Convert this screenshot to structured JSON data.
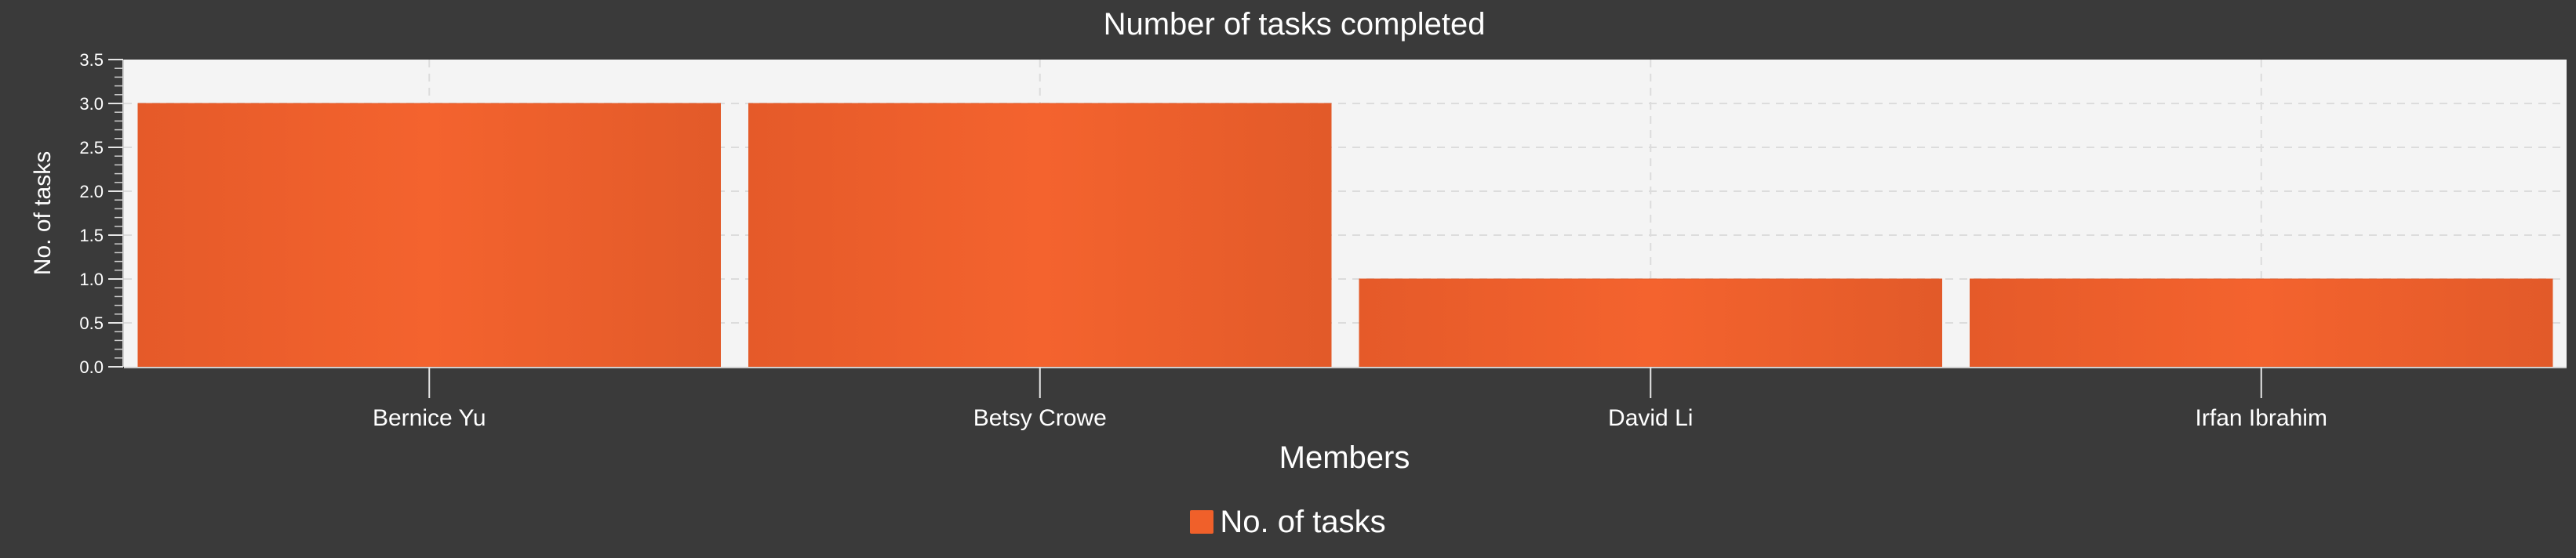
{
  "chart_data": {
    "type": "bar",
    "title": "Number of tasks completed",
    "xlabel": "Members",
    "ylabel": "No. of tasks",
    "categories": [
      "Bernice Yu",
      "Betsy Crowe",
      "David Li",
      "Irfan Ibrahim"
    ],
    "series": [
      {
        "name": "No. of tasks",
        "values": [
          3,
          3,
          1,
          1
        ],
        "color": "#f0602a"
      }
    ],
    "ylim": [
      0,
      3.5
    ],
    "yticks": [
      0.0,
      0.5,
      1.0,
      1.5,
      2.0,
      2.5,
      3.0,
      3.5
    ],
    "ytick_labels": [
      "0.0",
      "0.5",
      "1.0",
      "1.5",
      "2.0",
      "2.5",
      "3.0",
      "3.5"
    ],
    "grid": true,
    "legend_position": "bottom-center"
  },
  "colors": {
    "background": "#3a3a3a",
    "plot_background": "#f4f4f4",
    "bar": "#f0602a",
    "bar_edge": "#e25a29",
    "text": "#ffffff",
    "grid": "#dcdcdc"
  }
}
